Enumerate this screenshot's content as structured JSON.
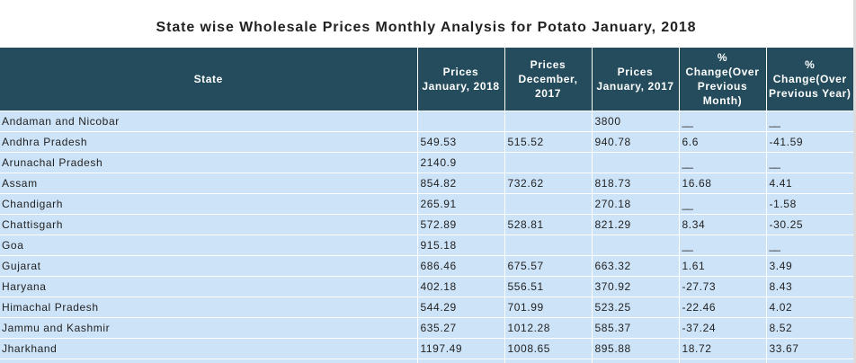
{
  "title": "State wise Wholesale Prices Monthly Analysis for Potato January, 2018",
  "columns": [
    "State",
    "Prices January, 2018",
    "Prices December, 2017",
    "Prices January, 2017",
    "% Change(Over Previous Month)",
    "% Change(Over Previous Year)"
  ],
  "rows": [
    [
      "Andaman and Nicobar",
      "",
      "",
      "3800",
      "__",
      "__"
    ],
    [
      "Andhra Pradesh",
      "549.53",
      "515.52",
      "940.78",
      "6.6",
      "-41.59"
    ],
    [
      "Arunachal Pradesh",
      "2140.9",
      "",
      "",
      "__",
      "__"
    ],
    [
      "Assam",
      "854.82",
      "732.62",
      "818.73",
      "16.68",
      "4.41"
    ],
    [
      "Chandigarh",
      "265.91",
      "",
      "270.18",
      "__",
      "-1.58"
    ],
    [
      "Chattisgarh",
      "572.89",
      "528.81",
      "821.29",
      "8.34",
      "-30.25"
    ],
    [
      "Goa",
      "915.18",
      "",
      "",
      "__",
      "__"
    ],
    [
      "Gujarat",
      "686.46",
      "675.57",
      "663.32",
      "1.61",
      "3.49"
    ],
    [
      "Haryana",
      "402.18",
      "556.51",
      "370.92",
      "-27.73",
      "8.43"
    ],
    [
      "Himachal Pradesh",
      "544.29",
      "701.99",
      "523.25",
      "-22.46",
      "4.02"
    ],
    [
      "Jammu and Kashmir",
      "635.27",
      "1012.28",
      "585.37",
      "-37.24",
      "8.52"
    ],
    [
      "Jharkhand",
      "1197.49",
      "1008.65",
      "895.88",
      "18.72",
      "33.67"
    ],
    [
      "",
      "",
      "",
      "",
      "",
      ""
    ]
  ]
}
